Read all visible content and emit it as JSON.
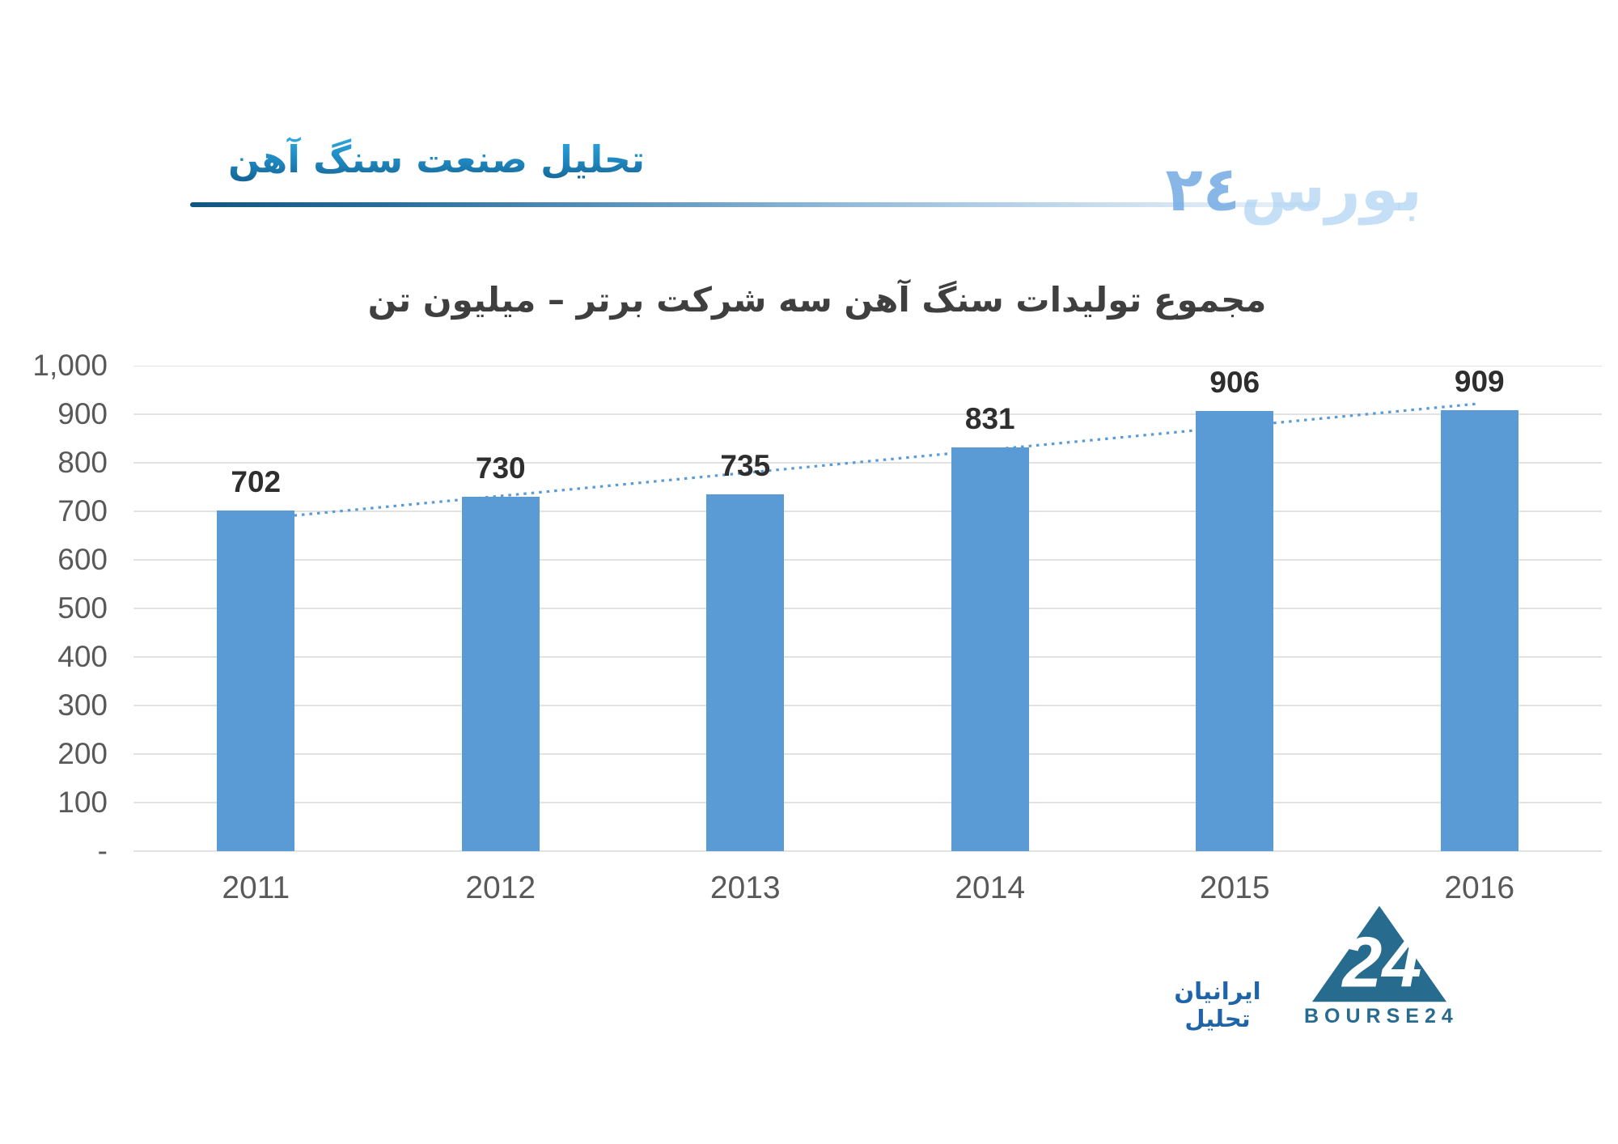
{
  "header": {
    "title": "تحلیل صنعت سنگ آهن",
    "watermark_word": "بورس",
    "watermark_digits": "٢٤"
  },
  "chart_data": {
    "type": "bar",
    "title": "مجموع تولیدات سنگ آهن سه شرکت برتر – میلیون تن",
    "categories": [
      "2011",
      "2012",
      "2013",
      "2014",
      "2015",
      "2016"
    ],
    "values": [
      702,
      730,
      735,
      831,
      906,
      909
    ],
    "series": [
      {
        "name": "مجموع تولیدات",
        "values": [
          702,
          730,
          735,
          831,
          906,
          909
        ]
      }
    ],
    "xlabel": "",
    "ylabel": "",
    "ylim": [
      0,
      1000
    ],
    "ytick_step": 100,
    "ytick_labels": [
      "-",
      "100",
      "200",
      "300",
      "400",
      "500",
      "600",
      "700",
      "800",
      "900",
      "1,000"
    ],
    "grid": true,
    "legend": false,
    "data_labels": true,
    "trendline": {
      "type": "linear",
      "style": "dotted",
      "start_value": 684,
      "end_value": 922
    }
  },
  "footer": {
    "analyst_text": "ایرانیان تحلیل",
    "logo_text": "BOURSE24",
    "logo_digits": "24"
  },
  "colors": {
    "bar": "#5B9BD5",
    "trendline": "#5B9BD5",
    "gridline": "#D9D9D9",
    "axis_text": "#595959",
    "data_label": "#2E2E2E",
    "chart_title": "#3F3F3F",
    "header_blue_light": "#2FA9E1",
    "header_blue_dark": "#125E8D",
    "footer_logo": "#276B8F",
    "analyst_blue": "#1F64A8"
  }
}
